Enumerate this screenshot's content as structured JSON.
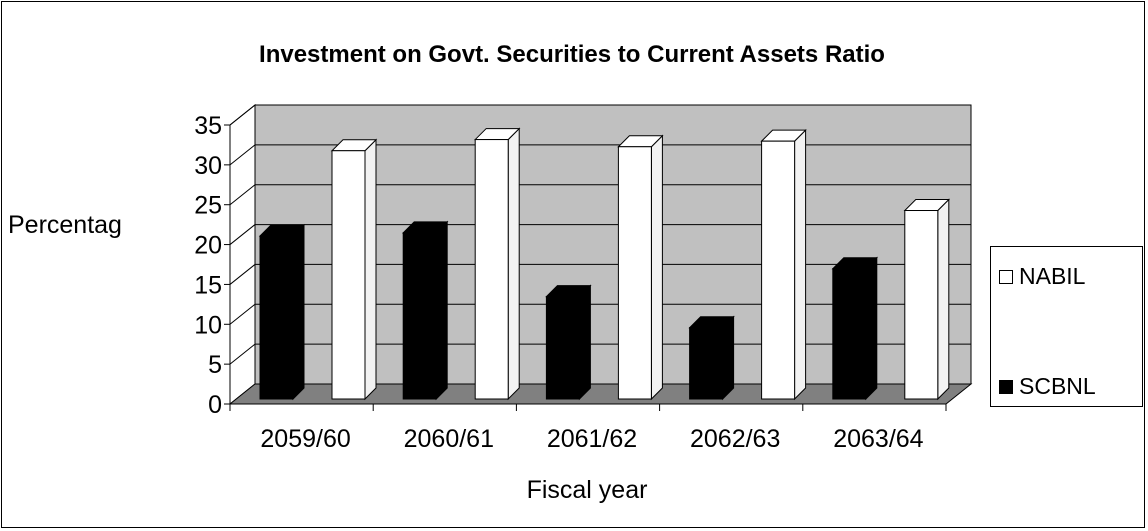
{
  "chart_data": {
    "type": "bar",
    "title": "Investment on Govt. Securities to Current Assets Ratio",
    "xlabel": "Fiscal year",
    "ylabel": "Percentag",
    "categories": [
      "2059/60",
      "2060/61",
      "2061/62",
      "2062/63",
      "2063/64"
    ],
    "series": [
      {
        "name": "SCBNL",
        "color": "#000000",
        "values": [
          21.7,
          22.1,
          14.1,
          10.2,
          17.6
        ]
      },
      {
        "name": "NABIL",
        "color": "#ffffff",
        "values": [
          32.4,
          33.8,
          32.9,
          33.6,
          24.9
        ]
      }
    ],
    "highlight_note": "",
    "ylim": [
      0,
      35
    ],
    "yticks": [
      0,
      5,
      10,
      15,
      20,
      25,
      30,
      35
    ],
    "grid": true,
    "legend_position": "right",
    "wall_color": "#c0c0c0",
    "floor_color": "#808080"
  }
}
